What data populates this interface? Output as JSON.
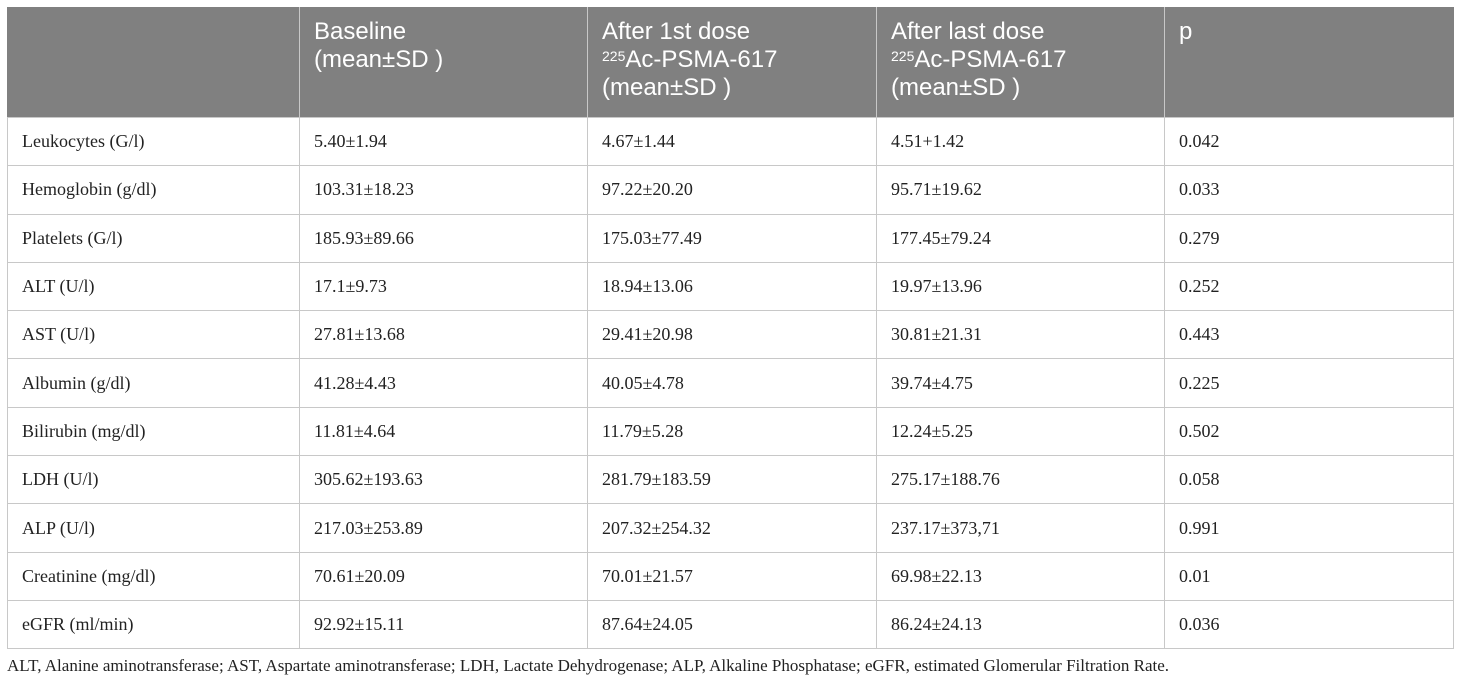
{
  "header": {
    "col0": "",
    "baseline_line1": "Baseline",
    "baseline_line2": "(mean±SD )",
    "first_line1": "After 1st dose",
    "first_sup": "225",
    "first_line2": "Ac-PSMA-617",
    "first_line3": "(mean±SD )",
    "last_line1": "After last dose",
    "last_sup": "225",
    "last_line2": "Ac-PSMA-617",
    "last_line3": "(mean±SD )",
    "p": "p"
  },
  "rows": [
    {
      "label": "Leukocytes (G/l)",
      "baseline": "5.40±1.94",
      "first": "4.67±1.44",
      "last": "4.51+1.42",
      "p": "0.042"
    },
    {
      "label": "Hemoglobin (g/dl)",
      "baseline": "103.31±18.23",
      "first": "97.22±20.20",
      "last": "95.71±19.62",
      "p": "0.033"
    },
    {
      "label": "Platelets (G/l)",
      "baseline": "185.93±89.66",
      "first": "175.03±77.49",
      "last": "177.45±79.24",
      "p": "0.279"
    },
    {
      "label": "ALT (U/l)",
      "baseline": "17.1±9.73",
      "first": "18.94±13.06",
      "last": "19.97±13.96",
      "p": "0.252"
    },
    {
      "label": "AST (U/l)",
      "baseline": "27.81±13.68",
      "first": "29.41±20.98",
      "last": "30.81±21.31",
      "p": "0.443"
    },
    {
      "label": "Albumin (g/dl)",
      "baseline": "41.28±4.43",
      "first": "40.05±4.78",
      "last": "39.74±4.75",
      "p": "0.225"
    },
    {
      "label": "Bilirubin (mg/dl)",
      "baseline": "11.81±4.64",
      "first": "11.79±5.28",
      "last": "12.24±5.25",
      "p": "0.502"
    },
    {
      "label": "LDH (U/l)",
      "baseline": "305.62±193.63",
      "first": "281.79±183.59",
      "last": "275.17±188.76",
      "p": "0.058"
    },
    {
      "label": "ALP (U/l)",
      "baseline": "217.03±253.89",
      "first": "207.32±254.32",
      "last": "237.17±373,71",
      "p": "0.991"
    },
    {
      "label": "Creatinine (mg/dl)",
      "baseline": "70.61±20.09",
      "first": "70.01±21.57",
      "last": "69.98±22.13",
      "p": "0.01"
    },
    {
      "label": "eGFR (ml/min)",
      "baseline": "92.92±15.11",
      "first": "87.64±24.05",
      "last": "86.24±24.13",
      "p": "0.036"
    }
  ],
  "footnote": "ALT, Alanine aminotransferase; AST, Aspartate aminotransferase; LDH, Lactate Dehydrogenase; ALP, Alkaline Phosphatase; eGFR, estimated Glomerular Filtration Rate."
}
